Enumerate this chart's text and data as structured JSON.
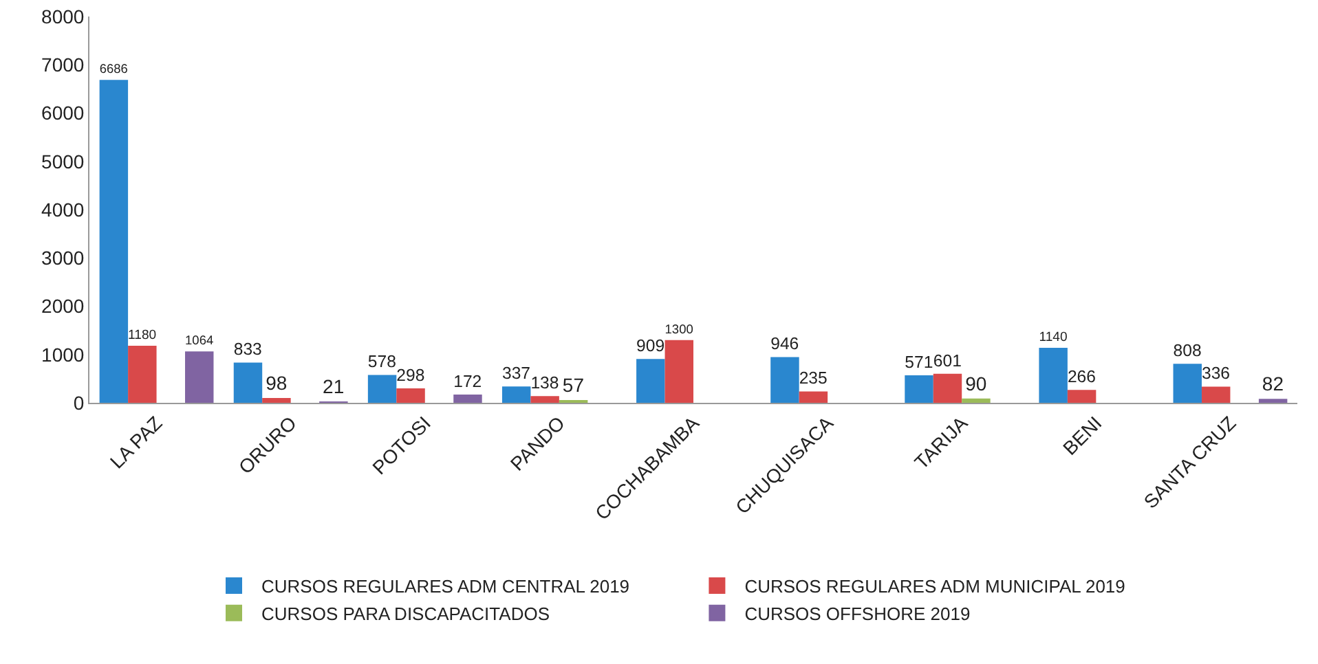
{
  "chart_data": {
    "type": "bar",
    "categories": [
      "LA PAZ",
      "ORURO",
      "POTOSI",
      "PANDO",
      "COCHABAMBA",
      "CHUQUISACA",
      "TARIJA",
      "BENI",
      "SANTA CRUZ"
    ],
    "series": [
      {
        "name": "CURSOS REGULARES ADM CENTRAL 2019",
        "color": "#2a87cf",
        "values": [
          6686,
          833,
          578,
          337,
          909,
          946,
          571,
          1140,
          808
        ]
      },
      {
        "name": "CURSOS REGULARES ADM MUNICIPAL 2019",
        "color": "#d9494a",
        "values": [
          1180,
          98,
          298,
          138,
          1300,
          235,
          601,
          266,
          336
        ]
      },
      {
        "name": "CURSOS PARA DISCAPACITADOS",
        "color": "#9bbb59",
        "values": [
          null,
          null,
          null,
          57,
          null,
          null,
          90,
          null,
          null
        ]
      },
      {
        "name": "CURSOS OFFSHORE 2019",
        "color": "#8064a2",
        "values": [
          1064,
          21,
          172,
          null,
          null,
          null,
          null,
          null,
          82
        ]
      }
    ],
    "ylim": [
      0,
      8000
    ],
    "yticks": [
      0,
      1000,
      2000,
      3000,
      4000,
      5000,
      6000,
      7000,
      8000
    ],
    "grid": false,
    "legend": "bottom",
    "data_labels": true
  }
}
